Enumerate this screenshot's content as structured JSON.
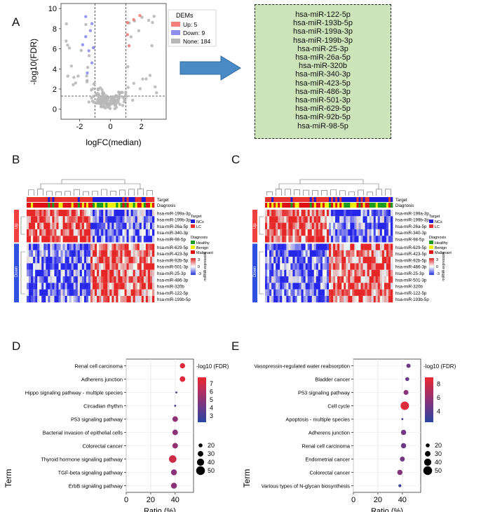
{
  "panels": {
    "a": "A",
    "b": "B",
    "c": "C",
    "d": "D",
    "e": "E"
  },
  "volcano": {
    "xlabel": "logFC(median)",
    "ylabel": "-log10(FDR)",
    "xticks": [
      "-2",
      "0",
      "2"
    ],
    "yticks": [
      "0",
      "2",
      "4",
      "6",
      "8",
      "10"
    ],
    "legend_title": "DEMs",
    "legend": [
      "Up: 5",
      "Down: 9",
      "None: 184"
    ],
    "colors": {
      "up": "#f08078",
      "down": "#8e8ef0",
      "none": "#b8b8b8"
    }
  },
  "dem_list": [
    "hsa-miR-122-5p",
    "hsa-miR-193b-5p",
    "hsa-miR-199a-3p",
    "hsa-miR-199b-3p",
    "hsa-miR-25-3p",
    "hsa-miR-26a-5p",
    "hsa-miR-320b",
    "hsa-miR-340-3p",
    "hsa-miR-423-5p",
    "hsa-miR-486-3p",
    "hsa-miR-501-3p",
    "hsa-miR-629-5p",
    "hsa-miR-92b-5p",
    "hsa-miR-98-5p"
  ],
  "heatmap_b": {
    "track_labels": [
      "Target",
      "Diagnosis"
    ],
    "groups": [
      "Up",
      "Down"
    ],
    "rows": [
      "hsa-miR-199a-3p",
      "hsa-miR-199b-3p",
      "hsa-miR-26a-5p",
      "hsa-miR-340-3p",
      "hsa-miR-98-5p",
      "hsa-miR-629-5p",
      "hsa-miR-423-5p",
      "hsa-miR-92b-5p",
      "hsa-miR-501-3p",
      "hsa-miR-25-3p",
      "hsa-miR-486-3p",
      "hsa-miR-320b",
      "hsa-miR-122-5p",
      "hsa-miR-193b-5p"
    ]
  },
  "heatmap_c": {
    "track_labels": [
      "Target",
      "Diagnosis"
    ],
    "groups": [
      "Up",
      "Down"
    ],
    "rows": [
      "hsa-miR-199a-3p",
      "hsa-miR-199b-3p",
      "hsa-miR-26a-5p",
      "hsa-miR-340-3p",
      "hsa-miR-98-5p",
      "hsa-miR-629-5p",
      "hsa-miR-423-5p",
      "hsa-miR-92b-5p",
      "hsa-miR-486-3p",
      "hsa-miR-25-3p",
      "hsa-miR-501-3p",
      "hsa-miR-320b",
      "hsa-miR-122-5p",
      "hsa-miR-193b-5p"
    ]
  },
  "heatmap_legend": {
    "target_title": "Target",
    "target": [
      "NCs",
      "LC"
    ],
    "diagnosis_title": "Diagnosis",
    "diagnosis": [
      "Healthy",
      "Benign",
      "Malignant"
    ],
    "scale_title": "miRNA expression",
    "scale_ticks": [
      "3",
      "0",
      "-3"
    ],
    "colors": {
      "ncs": "#1a1ad8",
      "lc": "#e83030",
      "healthy": "#1e9a1e",
      "benign": "#f0f000",
      "malignant": "#e01010"
    }
  },
  "chart_data": [
    {
      "type": "scatter",
      "panel": "D",
      "xlabel": "Ratio (%)",
      "ylabel": "Term",
      "xlim": [
        0,
        55
      ],
      "xticks": [
        0,
        20,
        40
      ],
      "categories": [
        "Renal cell carcinoma",
        "Adherens junction",
        "Hippo signaling pathway - multiple species",
        "Circadian rhythm",
        "P53 signaling pathway",
        "Bacterial invasion of epithelial cells",
        "Colorectal cancer",
        "Thyroid hormone signaling pathway",
        "TGF-beta signaling pathway",
        "ErbB signaling pathway"
      ],
      "ratio": [
        46,
        46,
        41,
        40,
        40,
        40,
        40,
        38,
        39,
        39
      ],
      "count": [
        28,
        30,
        8,
        8,
        30,
        30,
        30,
        42,
        32,
        32
      ],
      "neglog10fdr": [
        7.4,
        7.5,
        3.5,
        3.4,
        5.1,
        5.0,
        5.2,
        7.0,
        5.0,
        5.0
      ],
      "color_title": "-log10 (FDR)",
      "color_ticks": [
        3,
        4,
        5,
        6,
        7
      ],
      "color_range": [
        2.2,
        7.8
      ],
      "size_ticks": [
        20,
        30,
        40,
        50
      ]
    },
    {
      "type": "scatter",
      "panel": "E",
      "xlabel": "Ratio (%)",
      "ylabel": "Term",
      "xlim": [
        0,
        55
      ],
      "xticks": [
        0,
        20,
        40
      ],
      "categories": [
        "Vasopressin-regulated water reabsorption",
        "Bladder cancer",
        "P53 signaling pathway",
        "Cell cycle",
        "Apoptosis - multiple species",
        "Adherens junction",
        "Renal cell carcinoma",
        "Endometrial cancer",
        "Colorectal cancer",
        "Various types of N-glycan biosynthesis"
      ],
      "ratio": [
        45,
        44,
        43,
        42,
        40,
        41,
        41,
        40,
        38,
        38
      ],
      "count": [
        22,
        20,
        26,
        48,
        8,
        28,
        28,
        26,
        28,
        14
      ],
      "neglog10fdr": [
        4.6,
        4.5,
        5.6,
        8.5,
        3.4,
        4.8,
        4.6,
        4.8,
        5.4,
        3.0
      ],
      "color_title": "-log10 (FDR)",
      "color_ticks": [
        4,
        6,
        8
      ],
      "color_range": [
        2.4,
        9.0
      ],
      "size_ticks": [
        20,
        30,
        40,
        50
      ]
    }
  ]
}
